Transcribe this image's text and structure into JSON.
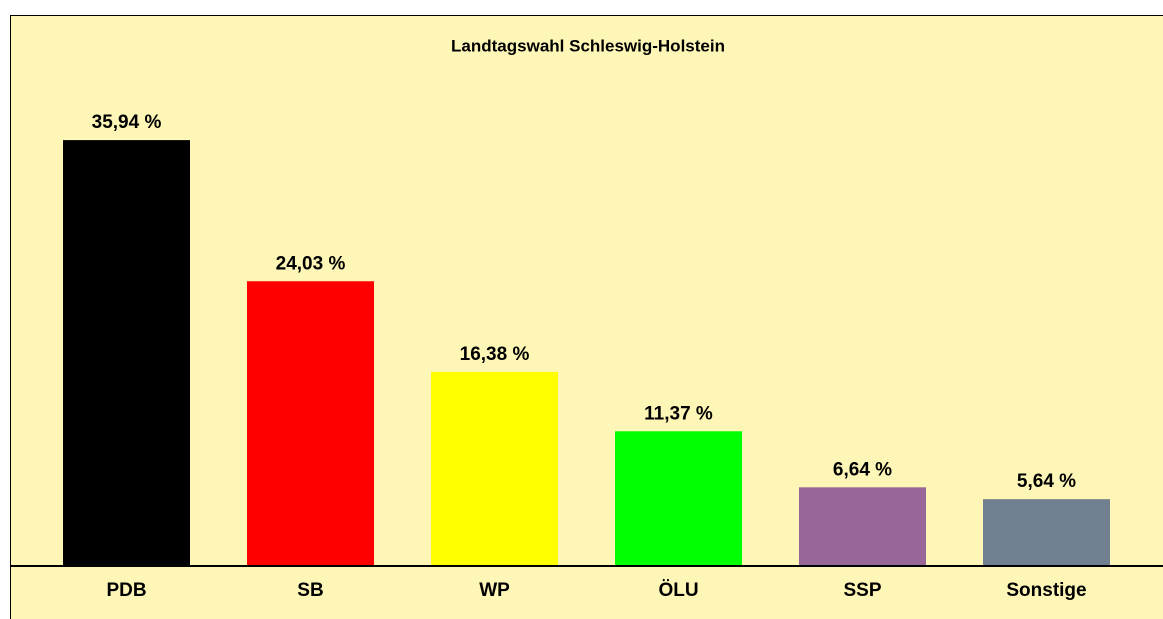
{
  "chart_data": {
    "type": "bar",
    "title": "Landtagswahl Schleswig-Holstein",
    "categories": [
      "PDB",
      "SB",
      "WP",
      "ÖLU",
      "SSP",
      "Sonstige"
    ],
    "values": [
      35.94,
      24.03,
      16.38,
      11.37,
      6.64,
      5.64
    ],
    "value_labels": [
      "35,94 %",
      "24,03 %",
      "16,38 %",
      "11,37 %",
      "6,64 %",
      "5,64 %"
    ],
    "colors": [
      "#000000",
      "#ff0000",
      "#ffff00",
      "#00ff00",
      "#996699",
      "#708090"
    ],
    "ylim": [
      0,
      40
    ]
  }
}
